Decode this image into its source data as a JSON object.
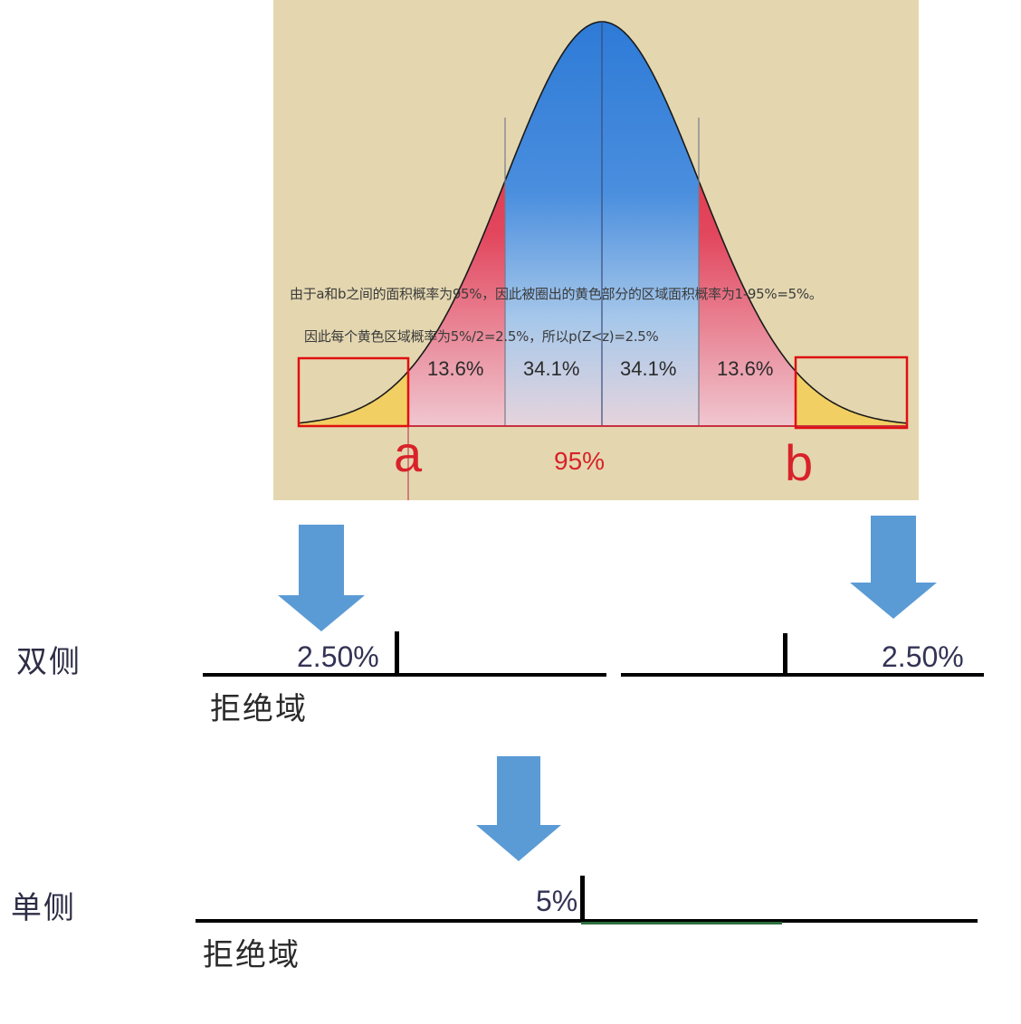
{
  "figure": {
    "note_line1": "由于a和b之间的面积概率为95%，因此被圈出的黄色部分的区域面积概率为1-95%=5%。",
    "note_line2": "因此每个黄色区域概率为5%/2=2.5%，所以p(Z<z)=2.5%",
    "band_percents": [
      "13.6%",
      "34.1%",
      "34.1%",
      "13.6%"
    ],
    "label_a": "a",
    "label_b": "b",
    "center_percent": "95%",
    "colors": {
      "background": "#e4d7b0",
      "center_band": "#2f7fd8",
      "outer_band": "#d8222a",
      "tail_fill": "#f2cf63",
      "highlight_box": "#e01010",
      "arrow": "#5b9bd5"
    }
  },
  "two_sided": {
    "side_label": "双侧",
    "left_value": "2.50%",
    "right_value": "2.50%",
    "rejection_label": "拒绝域"
  },
  "one_sided": {
    "side_label": "单侧",
    "value": "5%",
    "rejection_label": "拒绝域"
  }
}
